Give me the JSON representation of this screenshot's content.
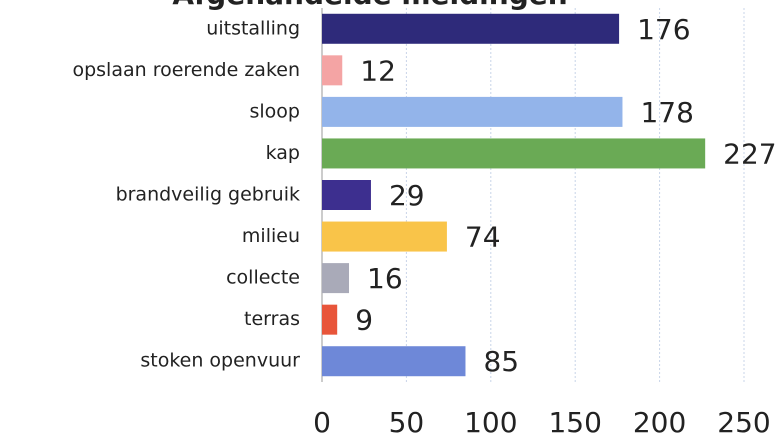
{
  "chart_data": {
    "type": "bar",
    "orientation": "horizontal",
    "title": "Afgehandelde meldingen",
    "categories": [
      "uitstalling",
      "opslaan roerende zaken",
      "sloop",
      "kap",
      "brandveilig gebruik",
      "milieu",
      "collecte",
      "terras",
      "stoken openvuur"
    ],
    "values": [
      176,
      12,
      178,
      227,
      29,
      74,
      16,
      9,
      85
    ],
    "colors": [
      "#2e2a7a",
      "#f4a4a4",
      "#93b4ea",
      "#6aaa55",
      "#3d2f8f",
      "#f9c449",
      "#a9aab8",
      "#e8553a",
      "#6e88d8"
    ],
    "xlim": [
      0,
      250
    ],
    "xticks": [
      0,
      50,
      100,
      150,
      200,
      250
    ],
    "grid": true
  }
}
